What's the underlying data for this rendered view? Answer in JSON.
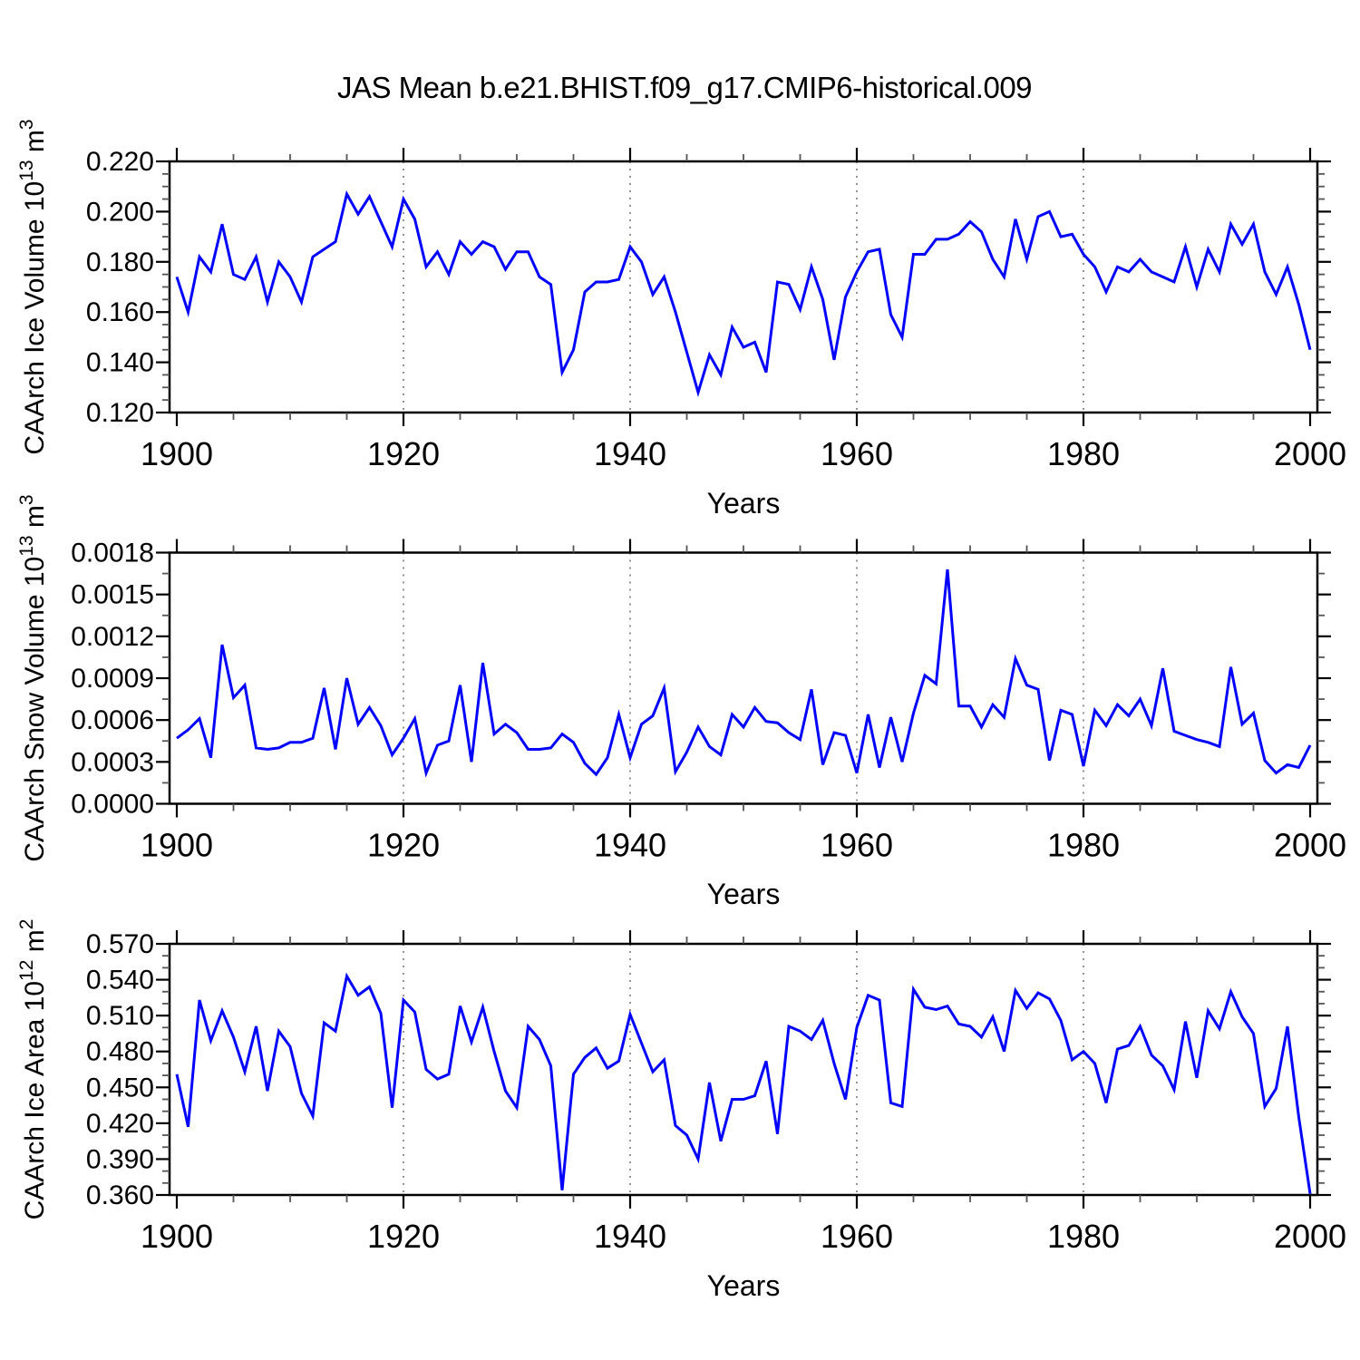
{
  "title": "JAS Mean b.e21.BHIST.f09_g17.CMIP6-historical.009",
  "chart_data": [
    {
      "type": "line",
      "series_name": "CAArch Ice Volume",
      "xlabel": "Years",
      "ylabel": "CAArch Ice Volume 10^13 m^3",
      "line_color": "#0000ff",
      "grid": "vertical-dashed",
      "gridlines_at": [
        1920,
        1940,
        1960,
        1980
      ],
      "x_major_ticks": [
        1900,
        1920,
        1940,
        1960,
        1980,
        2000
      ],
      "x_tick_labels": [
        "1900",
        "1920",
        "1940",
        "1960",
        "1980",
        "2000"
      ],
      "x_minor_step": 5,
      "xlim": [
        1899.4,
        2000.6
      ],
      "ylim": [
        0.12,
        0.22
      ],
      "y_major_step": 0.02,
      "y_minor_step": 0.005,
      "y_tick_labels": [
        "0.120",
        "0.140",
        "0.160",
        "0.180",
        "0.200",
        "0.220"
      ],
      "x_start": 1900,
      "x_step": 1,
      "values": [
        0.174,
        0.16,
        0.182,
        0.176,
        0.195,
        0.175,
        0.173,
        0.182,
        0.164,
        0.18,
        0.174,
        0.164,
        0.182,
        0.185,
        0.188,
        0.207,
        0.199,
        0.206,
        0.196,
        0.186,
        0.205,
        0.197,
        0.178,
        0.184,
        0.175,
        0.188,
        0.183,
        0.188,
        0.186,
        0.177,
        0.184,
        0.184,
        0.174,
        0.171,
        0.136,
        0.145,
        0.168,
        0.172,
        0.172,
        0.173,
        0.186,
        0.18,
        0.167,
        0.174,
        0.16,
        0.144,
        0.128,
        0.143,
        0.135,
        0.154,
        0.146,
        0.148,
        0.136,
        0.172,
        0.171,
        0.161,
        0.178,
        0.165,
        0.141,
        0.166,
        0.176,
        0.184,
        0.185,
        0.159,
        0.15,
        0.183,
        0.183,
        0.189,
        0.189,
        0.191,
        0.196,
        0.192,
        0.181,
        0.174,
        0.197,
        0.181,
        0.198,
        0.2,
        0.19,
        0.191,
        0.183,
        0.178,
        0.168,
        0.178,
        0.176,
        0.181,
        0.176,
        0.174,
        0.172,
        0.186,
        0.17,
        0.185,
        0.176,
        0.195,
        0.187,
        0.195,
        0.176,
        0.167,
        0.178,
        0.163,
        0.145
      ]
    },
    {
      "type": "line",
      "series_name": "CAArch Snow Volume",
      "xlabel": "Years",
      "ylabel": "CAArch Snow Volume 10^13 m^3",
      "line_color": "#0000ff",
      "grid": "vertical-dashed",
      "gridlines_at": [
        1920,
        1940,
        1960,
        1980
      ],
      "x_major_ticks": [
        1900,
        1920,
        1940,
        1960,
        1980,
        2000
      ],
      "x_tick_labels": [
        "1900",
        "1920",
        "1940",
        "1960",
        "1980",
        "2000"
      ],
      "x_minor_step": 5,
      "xlim": [
        1899.4,
        2000.6
      ],
      "ylim": [
        0.0,
        0.0018
      ],
      "y_major_step": 0.0003,
      "y_minor_step": 0.00015,
      "y_tick_labels": [
        "0.0000",
        "0.0003",
        "0.0006",
        "0.0009",
        "0.0012",
        "0.0015",
        "0.0018"
      ],
      "x_start": 1900,
      "x_step": 1,
      "values": [
        0.00047,
        0.00053,
        0.00061,
        0.00033,
        0.00114,
        0.00076,
        0.00085,
        0.0004,
        0.00039,
        0.0004,
        0.00044,
        0.00044,
        0.00047,
        0.00083,
        0.00039,
        0.0009,
        0.00057,
        0.00069,
        0.00056,
        0.00035,
        0.00047,
        0.00061,
        0.00022,
        0.00042,
        0.00045,
        0.00085,
        0.0003,
        0.00101,
        0.0005,
        0.00057,
        0.00051,
        0.00039,
        0.00039,
        0.0004,
        0.0005,
        0.00044,
        0.00029,
        0.00021,
        0.00033,
        0.00064,
        0.00033,
        0.00057,
        0.00063,
        0.00083,
        0.00023,
        0.00037,
        0.00055,
        0.00041,
        0.00035,
        0.00064,
        0.00055,
        0.00069,
        0.00059,
        0.00058,
        0.00051,
        0.00046,
        0.00082,
        0.00028,
        0.00051,
        0.00049,
        0.00022,
        0.00064,
        0.00026,
        0.00062,
        0.0003,
        0.00065,
        0.00092,
        0.00086,
        0.00168,
        0.0007,
        0.0007,
        0.00055,
        0.00071,
        0.00062,
        0.00104,
        0.00085,
        0.00082,
        0.00031,
        0.00067,
        0.00064,
        0.00027,
        0.00067,
        0.00056,
        0.00071,
        0.00063,
        0.00075,
        0.00056,
        0.00097,
        0.00052,
        0.00049,
        0.00046,
        0.00044,
        0.00041,
        0.00098,
        0.00057,
        0.00065,
        0.00031,
        0.00022,
        0.00028,
        0.00026,
        0.00042
      ]
    },
    {
      "type": "line",
      "series_name": "CAArch Ice Area",
      "xlabel": "Years",
      "ylabel": "CAArch Ice Area 10^12 m^2",
      "line_color": "#0000ff",
      "grid": "vertical-dashed",
      "gridlines_at": [
        1920,
        1940,
        1960,
        1980
      ],
      "x_major_ticks": [
        1900,
        1920,
        1940,
        1960,
        1980,
        2000
      ],
      "x_tick_labels": [
        "1900",
        "1920",
        "1940",
        "1960",
        "1980",
        "2000"
      ],
      "x_minor_step": 5,
      "xlim": [
        1899.4,
        2000.6
      ],
      "ylim": [
        0.36,
        0.57
      ],
      "y_major_step": 0.03,
      "y_minor_step": 0.01,
      "y_tick_labels": [
        "0.360",
        "0.390",
        "0.420",
        "0.450",
        "0.480",
        "0.510",
        "0.540",
        "0.570"
      ],
      "x_start": 1900,
      "x_step": 1,
      "values": [
        0.461,
        0.417,
        0.523,
        0.489,
        0.514,
        0.492,
        0.463,
        0.501,
        0.447,
        0.497,
        0.484,
        0.445,
        0.426,
        0.504,
        0.497,
        0.543,
        0.527,
        0.534,
        0.512,
        0.433,
        0.523,
        0.513,
        0.465,
        0.457,
        0.461,
        0.518,
        0.488,
        0.517,
        0.48,
        0.447,
        0.433,
        0.501,
        0.49,
        0.468,
        0.364,
        0.461,
        0.475,
        0.483,
        0.466,
        0.472,
        0.511,
        0.487,
        0.463,
        0.473,
        0.418,
        0.41,
        0.39,
        0.454,
        0.405,
        0.44,
        0.44,
        0.443,
        0.472,
        0.411,
        0.501,
        0.497,
        0.49,
        0.506,
        0.47,
        0.44,
        0.5,
        0.527,
        0.523,
        0.437,
        0.434,
        0.532,
        0.517,
        0.515,
        0.518,
        0.503,
        0.501,
        0.492,
        0.509,
        0.48,
        0.531,
        0.516,
        0.529,
        0.524,
        0.506,
        0.473,
        0.48,
        0.47,
        0.437,
        0.482,
        0.485,
        0.501,
        0.477,
        0.468,
        0.448,
        0.505,
        0.458,
        0.514,
        0.499,
        0.53,
        0.509,
        0.495,
        0.434,
        0.449,
        0.501,
        0.425,
        0.361
      ]
    }
  ],
  "colors": {
    "line": "#0000ff",
    "frame": "#000000",
    "minor_tick": "#555555",
    "dashed_grid": "#666666",
    "background": "#ffffff"
  }
}
